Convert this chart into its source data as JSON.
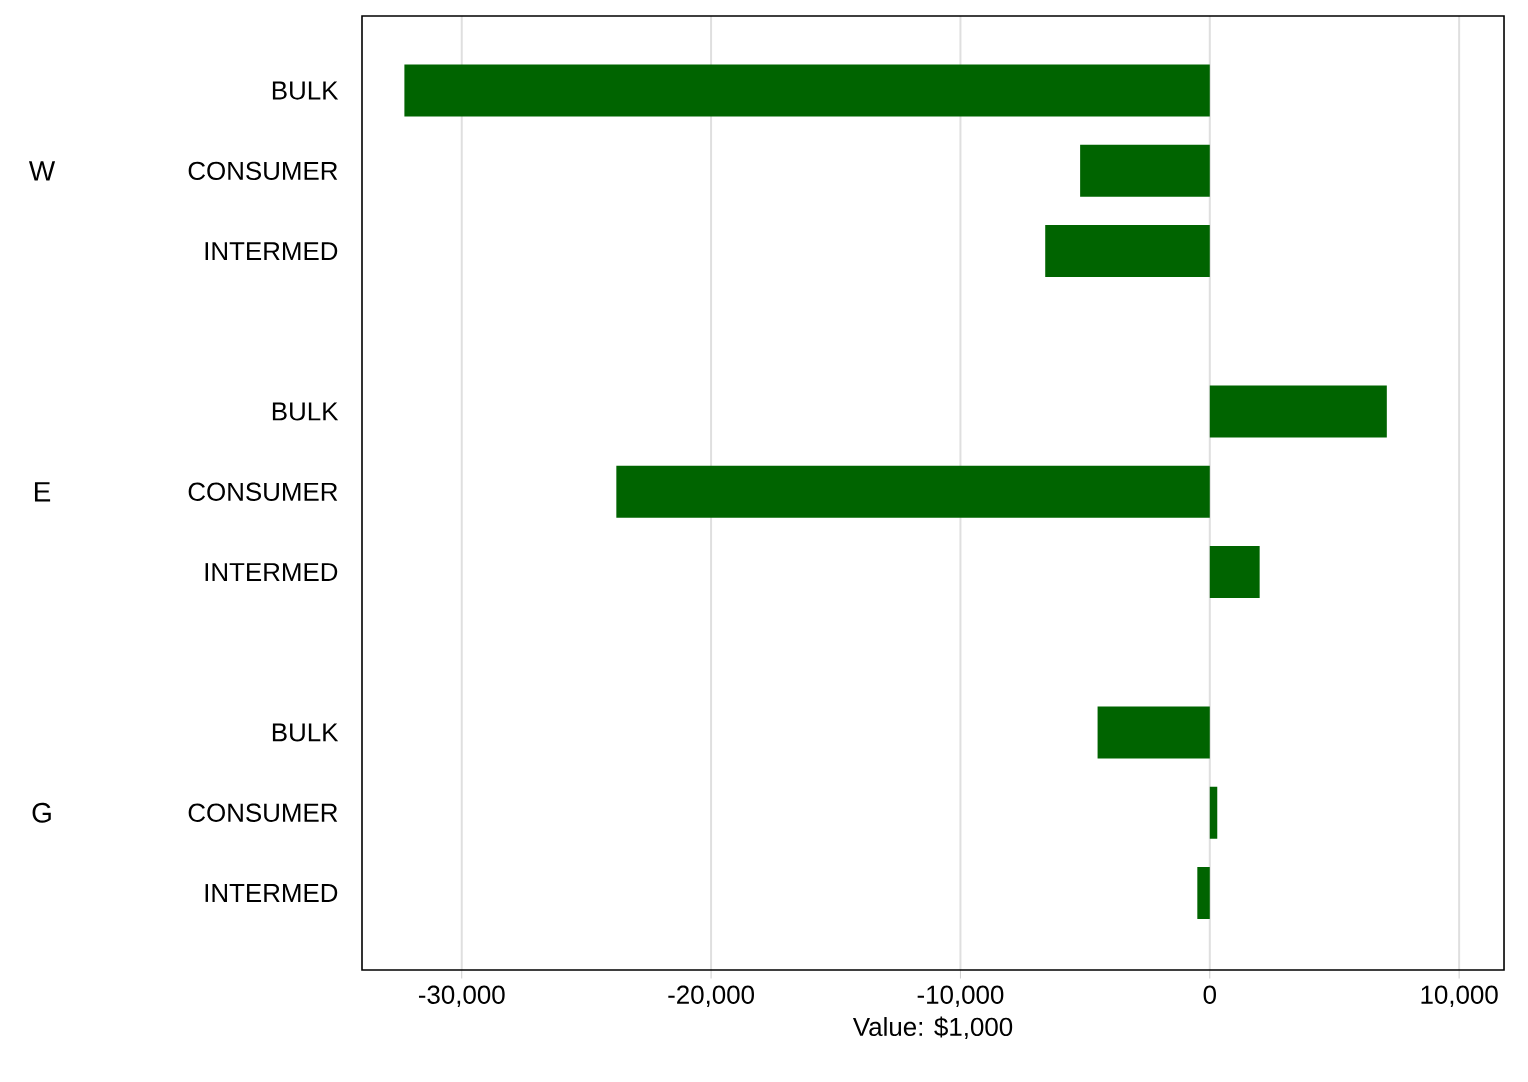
{
  "chart_data": {
    "type": "bar",
    "orientation": "horizontal",
    "categories": [
      "BULK",
      "CONSUMER",
      "INTERMED",
      null,
      "BULK",
      "CONSUMER",
      "INTERMED",
      null,
      "BULK",
      "CONSUMER",
      "INTERMED"
    ],
    "values": [
      -32300,
      -5200,
      -6600,
      null,
      7100,
      -23800,
      2000,
      null,
      -4500,
      300,
      -500
    ],
    "color": "#006400",
    "annotations": [
      "W",
      "E",
      "G"
    ],
    "xlabel": "Value: $1,000",
    "xlim": [
      -34000,
      11800
    ],
    "xticks": [
      {
        "value": -30000,
        "label": "-30,000"
      },
      {
        "value": -20000,
        "label": "-20,000"
      },
      {
        "value": -10000,
        "label": "-10,000"
      },
      0,
      {
        "value": 10000,
        "label": "10,000"
      }
    ],
    "grid": "x"
  }
}
